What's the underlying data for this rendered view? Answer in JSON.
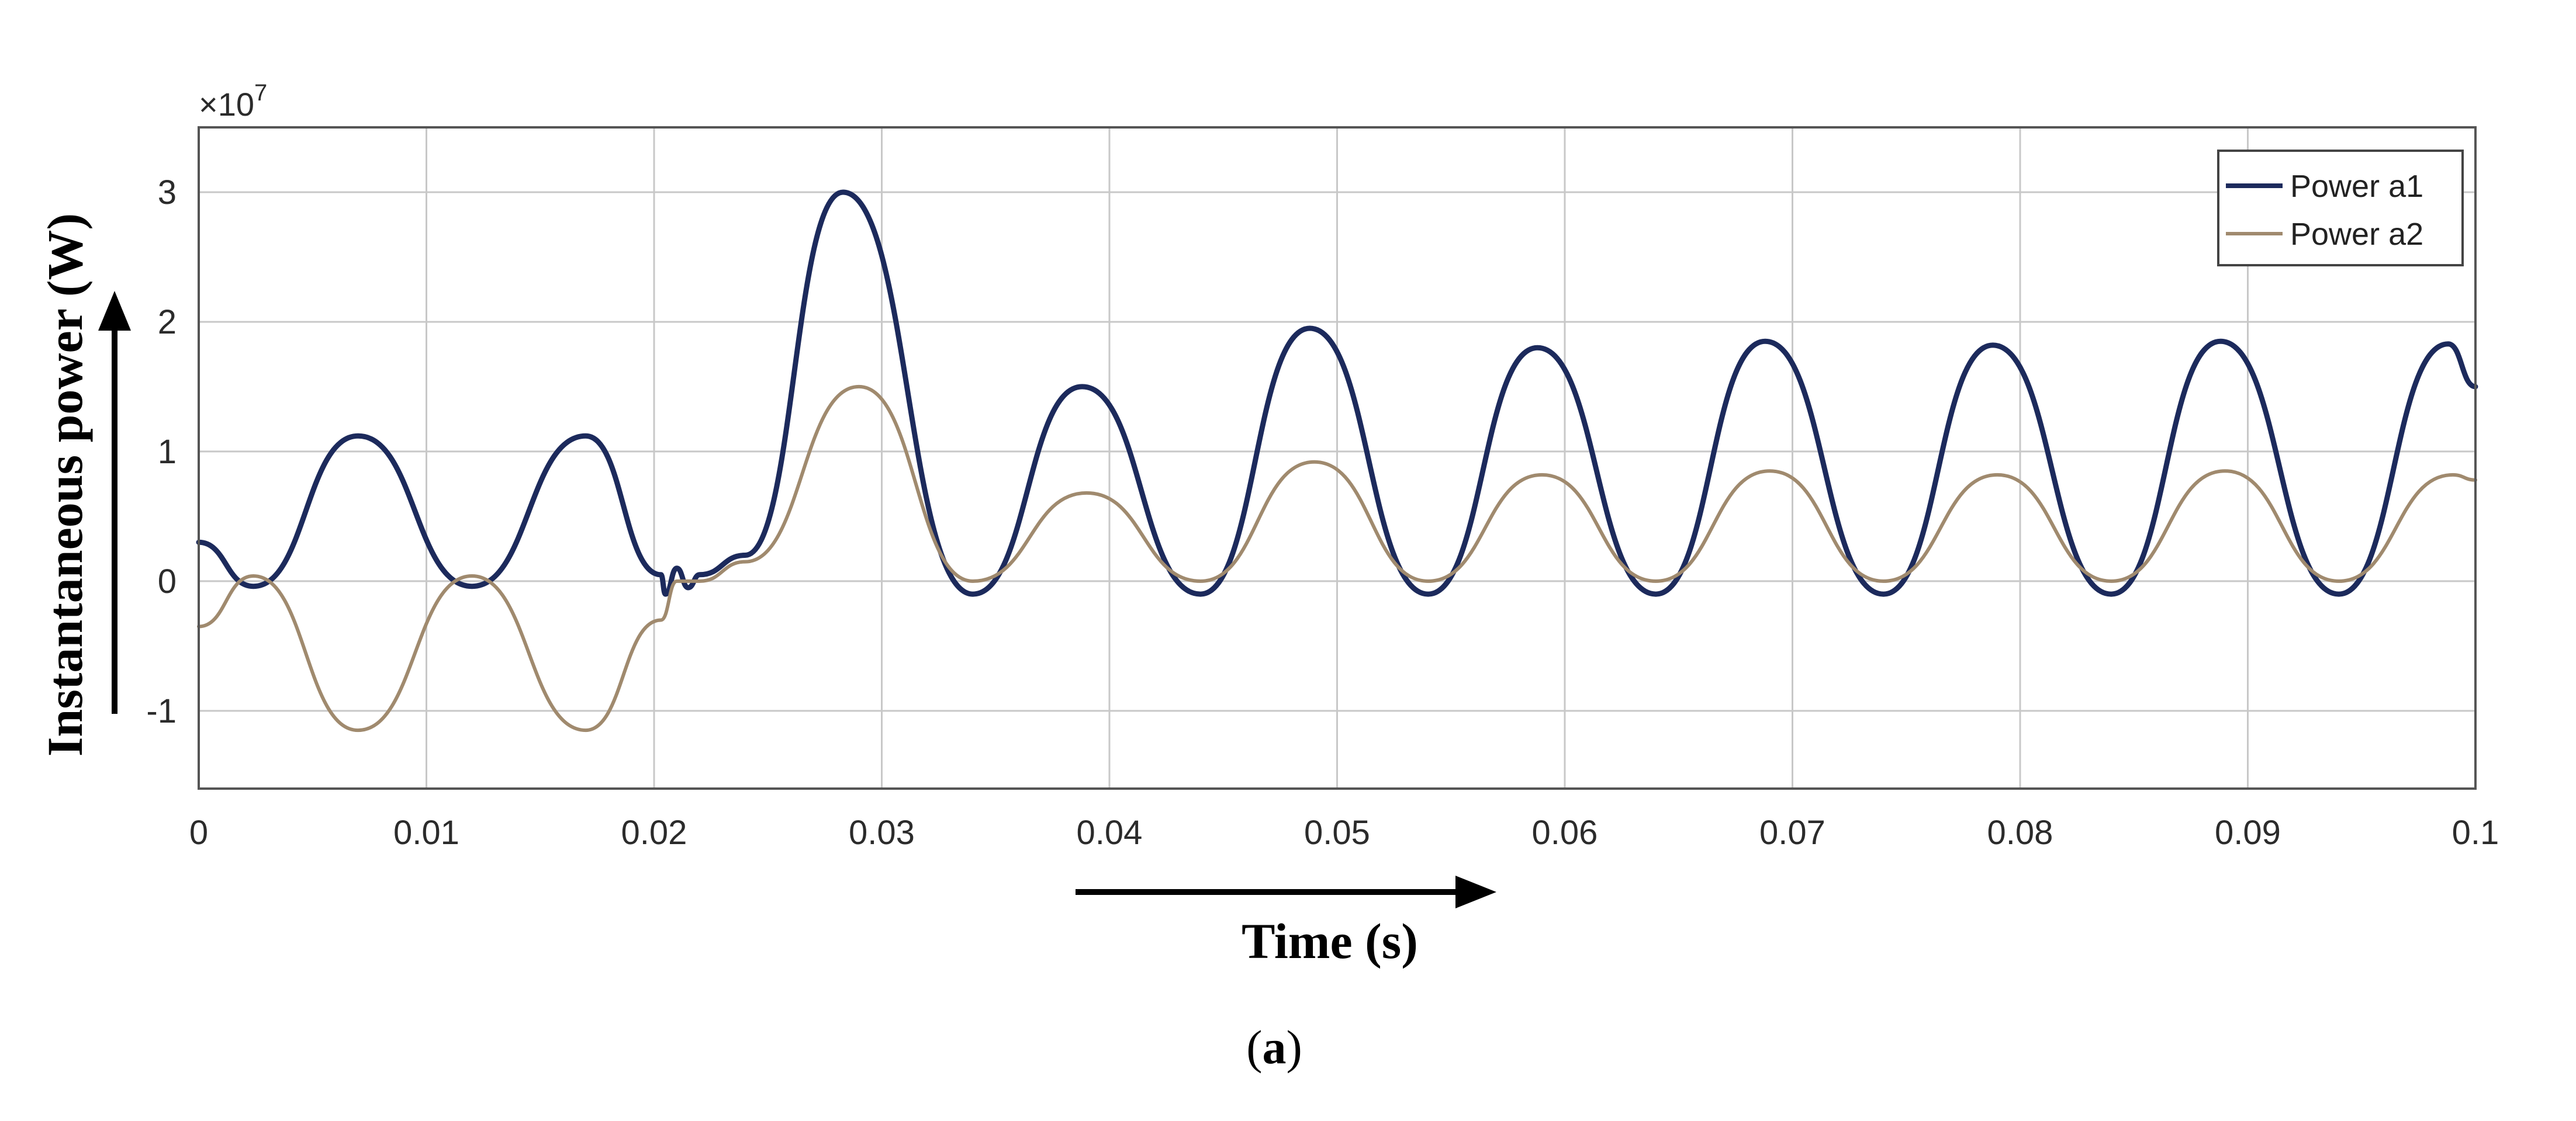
{
  "chart_data": {
    "type": "line",
    "xlabel": "Time (s)",
    "ylabel": "Instantaneous power (W)",
    "y_multiplier": "×10",
    "y_multiplier_exp": "7",
    "caption_open": "(",
    "caption_label": "a",
    "caption_close": ")",
    "xlim": [
      0,
      0.1
    ],
    "ylim": [
      -1.6,
      3.5
    ],
    "x_ticks": [
      0,
      0.01,
      0.02,
      0.03,
      0.04,
      0.05,
      0.06,
      0.07,
      0.08,
      0.09,
      0.1
    ],
    "x_tick_labels": [
      "0",
      "0.01",
      "0.02",
      "0.03",
      "0.04",
      "0.05",
      "0.06",
      "0.07",
      "0.08",
      "0.09",
      "0.1"
    ],
    "y_ticks": [
      -1,
      0,
      1,
      2,
      3
    ],
    "y_tick_labels": [
      "-1",
      "0",
      "1",
      "2",
      "3"
    ],
    "grid": true,
    "legend_position": "top-right",
    "series": [
      {
        "name": "Power a1",
        "color": "#1c2a5c",
        "x": [
          0,
          0.0024,
          0.007,
          0.012,
          0.017,
          0.0203,
          0.0205,
          0.021,
          0.0215,
          0.022,
          0.024,
          0.0283,
          0.034,
          0.0388,
          0.044,
          0.0488,
          0.054,
          0.0588,
          0.064,
          0.0688,
          0.074,
          0.0788,
          0.084,
          0.0888,
          0.094,
          0.0988,
          0.1
        ],
        "y": [
          0.3,
          -0.04,
          1.12,
          -0.04,
          1.12,
          0.05,
          -0.1,
          0.1,
          -0.05,
          0.05,
          0.2,
          3.0,
          -0.1,
          1.5,
          -0.1,
          1.95,
          -0.1,
          1.8,
          -0.1,
          1.85,
          -0.1,
          1.82,
          -0.1,
          1.85,
          -0.1,
          1.83,
          1.5
        ]
      },
      {
        "name": "Power a2",
        "color": "#a08a6e",
        "x": [
          0,
          0.0024,
          0.007,
          0.012,
          0.017,
          0.0203,
          0.021,
          0.022,
          0.024,
          0.029,
          0.034,
          0.039,
          0.044,
          0.049,
          0.054,
          0.059,
          0.064,
          0.069,
          0.074,
          0.079,
          0.084,
          0.089,
          0.094,
          0.099,
          0.1
        ],
        "y": [
          -0.35,
          0.04,
          -1.15,
          0.04,
          -1.15,
          -0.3,
          0.0,
          0.0,
          0.15,
          1.5,
          0.0,
          0.68,
          0.0,
          0.92,
          0.0,
          0.82,
          0.0,
          0.85,
          0.0,
          0.82,
          0.0,
          0.85,
          0.0,
          0.82,
          0.78
        ]
      }
    ]
  }
}
